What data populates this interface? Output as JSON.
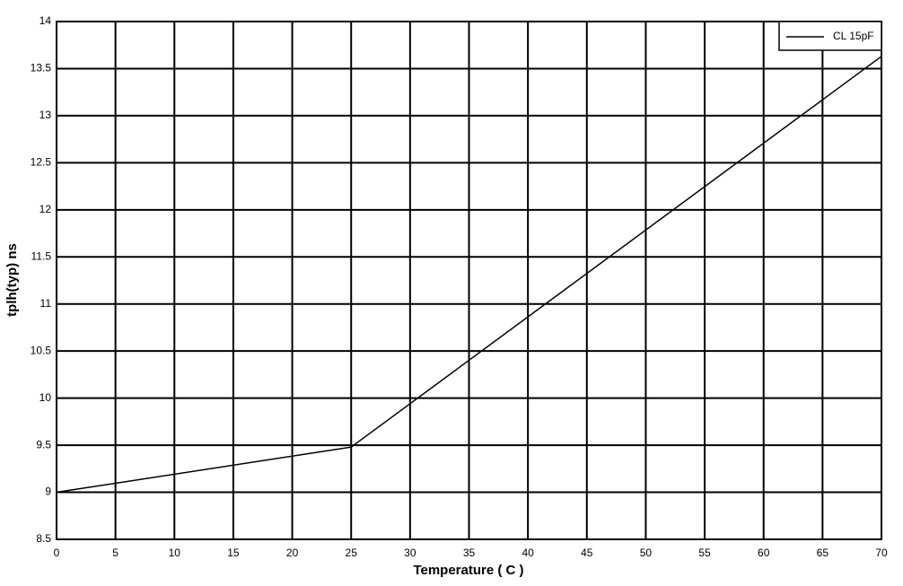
{
  "chart_data": {
    "type": "line",
    "x_label": "Temperature ( C )",
    "y_label": "tplh(typ) ns",
    "series": [
      {
        "name": "CL 15pF",
        "color": "#000000",
        "x": [
          0,
          25,
          70
        ],
        "values": [
          9.0,
          9.48,
          13.63
        ]
      }
    ],
    "xlim": [
      0,
      70
    ],
    "xticks": [
      0,
      5,
      10,
      15,
      20,
      25,
      30,
      35,
      40,
      45,
      50,
      55,
      60,
      65,
      70
    ],
    "ylim": [
      8.5,
      14
    ],
    "yticks": [
      8.5,
      9,
      9.5,
      10,
      10.5,
      11,
      11.5,
      12,
      12.5,
      13,
      13.5,
      14
    ],
    "grid": true,
    "legend": "upper right"
  }
}
